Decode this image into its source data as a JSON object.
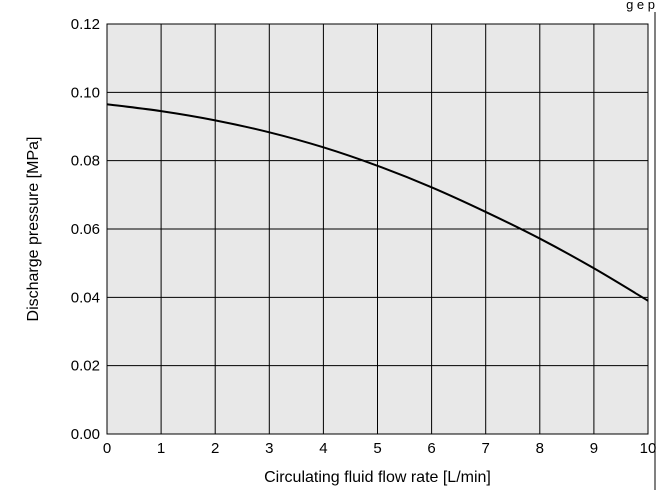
{
  "header": {
    "partial_text": "g e  p"
  },
  "colors": {
    "plot_background": "#e8e8e8",
    "grid": "#000000",
    "curve": "#000000"
  },
  "chart_data": {
    "type": "line",
    "title": "",
    "xlabel": "Circulating fluid flow rate [L/min]",
    "ylabel": "Discharge pressure [MPa]",
    "xlim": [
      0,
      10
    ],
    "ylim": [
      0,
      0.12
    ],
    "grid": true,
    "xticks": [
      0,
      1,
      2,
      3,
      4,
      5,
      6,
      7,
      8,
      9,
      10
    ],
    "xtick_labels": [
      "0",
      "1",
      "2",
      "3",
      "4",
      "5",
      "6",
      "7",
      "8",
      "9",
      "10"
    ],
    "yticks": [
      0,
      0.02,
      0.04,
      0.06,
      0.08,
      0.1,
      0.12
    ],
    "ytick_labels": [
      "0.00",
      "0.02",
      "0.04",
      "0.06",
      "0.08",
      "0.10",
      "0.12"
    ],
    "series": [
      {
        "x": [
          0,
          1,
          2,
          3,
          4,
          5,
          6,
          7,
          8,
          9,
          10
        ],
        "y": [
          0.0965,
          0.0945,
          0.0918,
          0.0883,
          0.0839,
          0.0785,
          0.0722,
          0.065,
          0.0572,
          0.0485,
          0.039
        ]
      }
    ]
  }
}
